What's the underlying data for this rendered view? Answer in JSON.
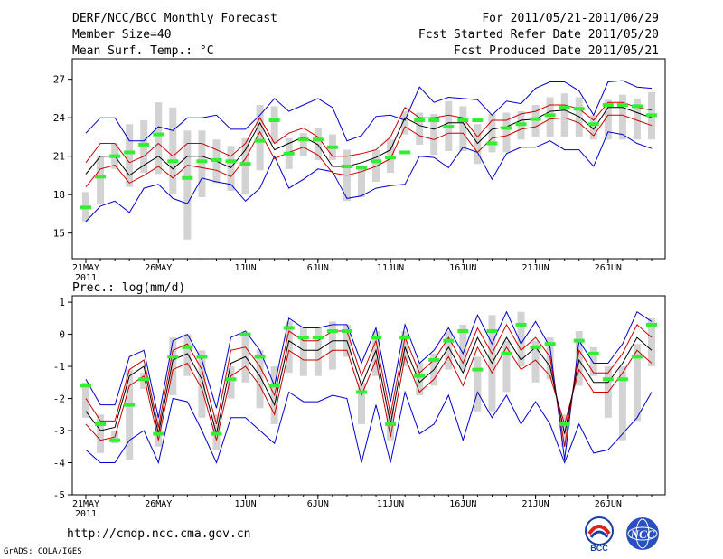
{
  "header": {
    "title": "DERF/NCC/BCC Monthly Forecast",
    "member_size": "Member Size=40",
    "variable": "Mean Surf. Temp.: °C",
    "period": "For 2011/05/21-2011/06/29",
    "started": "Fcst Started Refer Date 2011/05/20",
    "produced": "Fcst Produced Date 2011/05/21"
  },
  "footer": {
    "url": "http://cmdp.ncc.cma.gov.cn",
    "grads": "GrADS: COLA/IGES",
    "logo_bcc": "BCC",
    "logo_ncc": "NCC"
  },
  "colors": {
    "envelope": "#0000cc",
    "spread": "#cc0000",
    "mean": "#000000",
    "observed": "#33ee33",
    "box": "#d3d3d3"
  },
  "chart_data": [
    {
      "type": "line",
      "title": "Mean Surf. Temp.: °C",
      "x_ticks": [
        "21MAY",
        "26MAY",
        "1JUN",
        "6JUN",
        "11JUN",
        "16JUN",
        "21JUN",
        "26JUN"
      ],
      "x_tick_days": [
        0,
        5,
        11,
        16,
        21,
        26,
        31,
        36
      ],
      "year_label": "2011",
      "y_ticks": [
        15,
        18,
        21,
        24,
        27
      ],
      "ylim": [
        13,
        28.6
      ],
      "series": [
        {
          "name": "ensemble max",
          "values": [
            22.8,
            24,
            24,
            22.2,
            22.2,
            23.3,
            23,
            24,
            24,
            24.2,
            23.1,
            23.1,
            24.2,
            25.5,
            24.5,
            25,
            25.5,
            24.8,
            22.2,
            22.6,
            24.1,
            24.2,
            23.8,
            26.4,
            25.2,
            25.6,
            25.5,
            25.4,
            24.2,
            25.3,
            25.1,
            26.3,
            26.8,
            26.8,
            26.1,
            24.2,
            26.8,
            26.9,
            26.4,
            26.3
          ]
        },
        {
          "name": "upper spread",
          "values": [
            20.5,
            22,
            22,
            20.5,
            21,
            22,
            21,
            22,
            22,
            21.5,
            21,
            22,
            24,
            22,
            22.8,
            23.2,
            22.5,
            21,
            21,
            21.2,
            21.5,
            22.5,
            24.8,
            24,
            24,
            24.2,
            24,
            22.5,
            23.8,
            23.8,
            24.3,
            24.5,
            25,
            25,
            24.7,
            23.8,
            25.2,
            25.2,
            24.8,
            24.6
          ]
        },
        {
          "name": "ensemble mean",
          "values": [
            19.6,
            21,
            21,
            19.5,
            20.3,
            21,
            20,
            21,
            21,
            20.6,
            20.1,
            21.5,
            23.6,
            21.5,
            22,
            22.5,
            21.9,
            20.2,
            20.2,
            20.5,
            20.9,
            21.5,
            24,
            23.4,
            23.1,
            23.6,
            23.6,
            22,
            23.1,
            23.3,
            23.8,
            23.9,
            24.5,
            24.6,
            24.1,
            23.1,
            24.8,
            24.8,
            24.4,
            24
          ]
        },
        {
          "name": "lower spread",
          "values": [
            18.6,
            20,
            20.3,
            18.9,
            19.5,
            20.2,
            19.3,
            20.3,
            20.1,
            19.9,
            19.4,
            20.8,
            22.9,
            20.8,
            21.3,
            21.7,
            21.1,
            19.7,
            19.5,
            19.8,
            20.2,
            20.8,
            23.3,
            22.6,
            22.3,
            22.8,
            22.8,
            21.3,
            22.4,
            22.6,
            23.1,
            23.3,
            23.9,
            24,
            23.6,
            22.6,
            24.2,
            24.2,
            23.8,
            23.4
          ]
        },
        {
          "name": "ensemble min",
          "values": [
            15.9,
            17.1,
            17.5,
            16.6,
            18.5,
            18.8,
            17.7,
            17.3,
            19.3,
            19,
            18.8,
            17.5,
            18.5,
            21,
            18.5,
            19.2,
            20,
            19.8,
            17.7,
            17.9,
            18.5,
            18.7,
            18.8,
            21,
            20.9,
            20.1,
            21.7,
            21.3,
            19.2,
            21.2,
            21.7,
            21.7,
            22.2,
            21.5,
            21.5,
            20.2,
            22.9,
            22.7,
            22,
            21.6
          ]
        },
        {
          "name": "observed",
          "values": [
            17,
            19.4,
            21,
            21.3,
            21.9,
            22.7,
            20.6,
            19.3,
            20.6,
            20.7,
            20.6,
            20.4,
            22.2,
            23.8,
            21.2,
            22.3,
            22.3,
            21.7,
            20.2,
            20.1,
            20.6,
            20.9,
            21.3,
            23.8,
            23.8,
            23.3,
            23.8,
            23.8,
            22,
            23.2,
            23.5,
            23.9,
            24.2,
            24.8,
            24.7,
            23.5,
            25,
            25,
            24.9,
            24.2
          ]
        },
        {
          "name": "box top",
          "values": [
            18.2,
            21,
            22,
            23.5,
            23.8,
            25.2,
            24.8,
            23,
            23,
            22.3,
            21.8,
            22.4,
            25,
            24.9,
            22.4,
            22.8,
            23.2,
            22.7,
            21.5,
            20.3,
            21.5,
            22.3,
            24.5,
            24.4,
            24.3,
            25.3,
            24.9,
            23.5,
            24.3,
            24.4,
            24.5,
            25,
            25.6,
            25.9,
            25.6,
            24.2,
            25.4,
            25.8,
            25.5,
            26
          ]
        },
        {
          "name": "box bottom",
          "values": [
            15.9,
            17.3,
            20,
            18.6,
            19.7,
            19.6,
            18,
            14.5,
            17.8,
            18.9,
            18.3,
            18,
            19.9,
            22,
            20,
            21,
            20.7,
            20.7,
            17.5,
            17.8,
            19,
            19.7,
            22.7,
            21.9,
            21.1,
            21.4,
            21.4,
            20.4,
            21.3,
            21.3,
            22.3,
            22.5,
            22.5,
            22.5,
            22.5,
            22.3,
            22.3,
            22.3,
            22.3,
            22.3
          ]
        }
      ]
    },
    {
      "type": "line",
      "title": "Prec.: log(mm/d)",
      "x_ticks": [
        "21MAY",
        "26MAY",
        "1JUN",
        "6JUN",
        "11JUN",
        "16JUN",
        "21JUN",
        "26JUN"
      ],
      "x_tick_days": [
        0,
        5,
        11,
        16,
        21,
        26,
        31,
        36
      ],
      "year_label": "2011",
      "y_ticks": [
        1,
        0,
        -1,
        -2,
        -3,
        -4,
        -5
      ],
      "ylim": [
        -5,
        1.2
      ],
      "series": [
        {
          "name": "ensemble max",
          "values": [
            -1.4,
            -2.2,
            -2.2,
            -0.7,
            -0.5,
            -2.6,
            -0.2,
            0,
            -0.8,
            -2.3,
            -0.1,
            0.1,
            -0.5,
            -1.6,
            0.5,
            0.2,
            0.2,
            0.3,
            0.3,
            -0.9,
            0.2,
            -2.1,
            0.3,
            -0.9,
            -0.5,
            0.2,
            -0.6,
            0.6,
            -0.3,
            0.7,
            -0.3,
            0.4,
            -0.4,
            -3.9,
            -0.2,
            -0.9,
            -0.9,
            -0.3,
            0.7,
            0.4
          ]
        },
        {
          "name": "upper spread",
          "values": [
            -2,
            -2.7,
            -2.7,
            -1.1,
            -0.8,
            -2.9,
            -0.5,
            -0.3,
            -1.1,
            -2.8,
            -0.5,
            -0.4,
            -1,
            -1.9,
            0.1,
            -0.2,
            -0.2,
            0.1,
            0.1,
            -1.3,
            -0.2,
            -2.5,
            -0.1,
            -1.2,
            -0.8,
            -0.1,
            -0.9,
            0.2,
            -0.6,
            0.3,
            -0.5,
            -0.1,
            -0.7,
            -3.5,
            -0.5,
            -1.2,
            -1.2,
            -0.6,
            0.3,
            -0.1
          ]
        },
        {
          "name": "ensemble mean",
          "values": [
            -2.4,
            -3,
            -2.9,
            -1.3,
            -1,
            -3.1,
            -0.8,
            -0.6,
            -1.4,
            -3.1,
            -0.9,
            -0.7,
            -1.3,
            -2.2,
            -0.2,
            -0.5,
            -0.5,
            -0.2,
            -0.2,
            -1.6,
            -0.5,
            -2.8,
            -0.4,
            -1.5,
            -1.1,
            -0.4,
            -1.2,
            -0.1,
            -0.9,
            -0.1,
            -0.8,
            -0.4,
            -1,
            -3.1,
            -0.8,
            -1.5,
            -1.5,
            -0.9,
            -0.1,
            -0.5
          ]
        },
        {
          "name": "lower spread",
          "values": [
            -2.8,
            -3.3,
            -3.2,
            -1.6,
            -1.3,
            -3.3,
            -1.1,
            -0.9,
            -1.7,
            -3.3,
            -1.3,
            -1,
            -1.6,
            -2.5,
            -0.5,
            -0.8,
            -0.8,
            -0.5,
            -0.5,
            -1.9,
            -0.8,
            -3.2,
            -0.7,
            -1.8,
            -1.4,
            -0.7,
            -1.6,
            -0.4,
            -1.2,
            -0.4,
            -1.1,
            -0.8,
            -1.3,
            -2.8,
            -1.1,
            -1.8,
            -1.8,
            -1.2,
            -0.5,
            -0.9
          ]
        },
        {
          "name": "ensemble min",
          "values": [
            -3.6,
            -4,
            -4,
            -3.3,
            -3,
            -4,
            -2,
            -2.1,
            -3,
            -4,
            -2.6,
            -2.6,
            -3,
            -3.4,
            -1.8,
            -2.1,
            -2.1,
            -1.9,
            -2,
            -4,
            -2.2,
            -4,
            -1.8,
            -3.1,
            -2.8,
            -1.9,
            -3.3,
            -1.8,
            -2.6,
            -1.9,
            -2.8,
            -2.1,
            -2.8,
            -4,
            -2.8,
            -3.7,
            -3.6,
            -3.1,
            -2.6,
            -1.8
          ]
        },
        {
          "name": "observed",
          "values": [
            -1.6,
            -2.8,
            -3.3,
            -2.2,
            -1.4,
            -3.1,
            -0.7,
            -0.4,
            -0.7,
            -3.1,
            -1.4,
            0,
            -0.7,
            -1.6,
            0.2,
            -0.1,
            -0.1,
            0.1,
            0.1,
            -1.8,
            -0.1,
            -2.8,
            -0.1,
            -1.3,
            -0.8,
            -0.2,
            0.1,
            -1.1,
            0.1,
            -0.6,
            0.3,
            -0.4,
            -0.3,
            -2.8,
            -0.2,
            -0.6,
            -1.4,
            -1.4,
            -0.7,
            0.3
          ]
        },
        {
          "name": "box top",
          "values": [
            -1.5,
            -2.5,
            -3,
            -1.1,
            -1.2,
            -2.5,
            -0.1,
            0,
            -0.5,
            -2.5,
            -1,
            0,
            -0.5,
            -1,
            0.4,
            0.2,
            0.2,
            0.4,
            0.3,
            -1.5,
            0.1,
            -2.3,
            0.1,
            -0.9,
            -0.6,
            0.1,
            0.3,
            -0.7,
            0.6,
            -0.2,
            0.7,
            -0.2,
            -0.1,
            -2.5,
            0.1,
            -0.4,
            -1,
            -1,
            -0.3,
            0.5
          ]
        },
        {
          "name": "box bottom",
          "values": [
            -2.6,
            -3.7,
            -3.4,
            -3.9,
            -1.7,
            -3.5,
            -1.9,
            -1.3,
            -2.6,
            -3.6,
            -2,
            -1.5,
            -2.3,
            -2.8,
            -1.2,
            -1.3,
            -1.3,
            -1.1,
            -0.7,
            -2.8,
            -1.3,
            -3.3,
            -1,
            -1.9,
            -1.6,
            -1.1,
            -1.1,
            -2.4,
            -2.4,
            -1.8,
            -1,
            -1.5,
            -1.4,
            -3.5,
            -1.6,
            -1.3,
            -2.6,
            -3.3,
            -2.7,
            -1
          ]
        }
      ]
    }
  ]
}
